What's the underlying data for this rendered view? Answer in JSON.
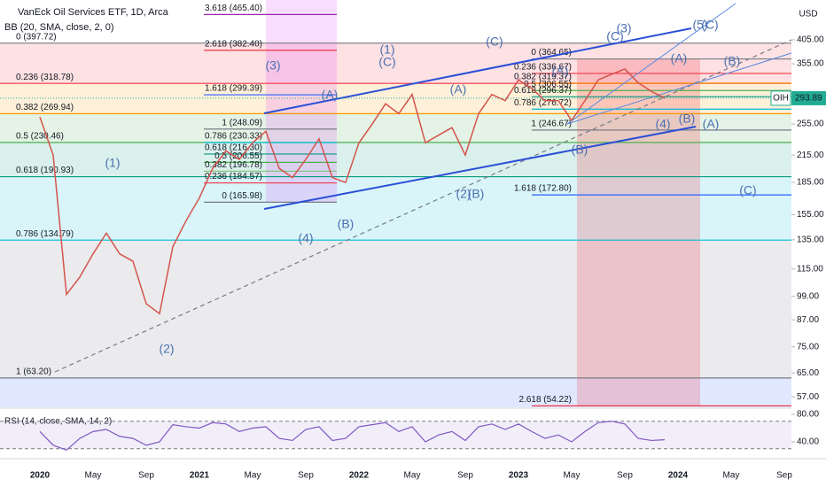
{
  "chart_data": [
    {
      "type": "line",
      "title": "VanEck Oil Services ETF, 1D, Arca",
      "subtitle": "BB (20, SMA, close, 2, 0)",
      "currency": "USD",
      "categories": [
        "2020",
        null,
        null,
        null,
        "May",
        null,
        null,
        null,
        "Sep",
        null,
        null,
        null,
        "2021",
        null,
        null,
        null,
        "May",
        null,
        null,
        null,
        "Sep",
        null,
        null,
        null,
        "2022",
        null,
        null,
        null,
        "May",
        null,
        null,
        null,
        "Sep",
        null,
        null,
        null,
        "2023",
        null,
        null,
        null,
        "May",
        null,
        null,
        null,
        "Sep",
        null,
        null,
        null,
        "2024",
        null,
        null,
        null,
        "May",
        null,
        null,
        null,
        "Sep"
      ],
      "values": [
        265,
        215,
        100,
        110,
        125,
        140,
        125,
        120,
        95,
        90,
        130,
        150,
        170,
        200,
        220,
        210,
        230,
        245,
        200,
        190,
        210,
        235,
        190,
        185,
        230,
        255,
        285,
        270,
        300,
        230,
        240,
        250,
        215,
        270,
        300,
        290,
        325,
        310,
        290,
        290,
        260,
        290,
        325,
        335,
        345,
        320,
        305,
        294,
        null,
        null,
        null,
        null,
        null,
        null,
        null,
        null,
        null
      ],
      "color": "#d4534b",
      "log": true,
      "ylim": [
        53.8,
        504
      ],
      "yticks": [
        {
          "value": 405,
          "label": "405.00"
        },
        {
          "value": 355,
          "label": "355.00"
        },
        {
          "value": 255,
          "label": "255.00"
        },
        {
          "value": 215,
          "label": "215.00"
        },
        {
          "value": 185,
          "label": "185.00"
        },
        {
          "value": 155,
          "label": "155.00"
        },
        {
          "value": 135,
          "label": "135.00"
        },
        {
          "value": 115,
          "label": "115.00"
        },
        {
          "value": 99,
          "label": "99.00"
        },
        {
          "value": 87,
          "label": "87.00"
        },
        {
          "value": 75,
          "label": "75.00"
        },
        {
          "value": 65,
          "label": "65.00"
        },
        {
          "value": 57,
          "label": "57.00"
        }
      ],
      "last_price_label": "OIH",
      "last_price": 293.89,
      "fib_groups": [
        [
          {
            "label": "0 (397.72)",
            "value": 397.72,
            "color": "#787b86"
          },
          {
            "label": "0.236 (318.78)",
            "value": 318.78,
            "color": "#f23645"
          },
          {
            "label": "0.382 (269.94)",
            "value": 269.94,
            "color": "#ff9800"
          },
          {
            "label": "0.5 (230.46)",
            "value": 230.46,
            "color": "#4caf50"
          },
          {
            "label": "0.618 (190.93)",
            "value": 190.93,
            "color": "#089981"
          },
          {
            "label": "0.786 (134.79)",
            "value": 134.79,
            "color": "#00bcd4"
          },
          {
            "label": "1 (63.20)",
            "value": 63.2,
            "color": "#787b86"
          }
        ],
        [
          {
            "label": "3.618 (465.40)",
            "value": 465.4,
            "color": "#9c27b0"
          },
          {
            "label": "2.618 (382.40)",
            "value": 382.4,
            "color": "#f23645"
          },
          {
            "label": "1.618 (299.39)",
            "value": 299.39,
            "color": "#2962ff"
          },
          {
            "label": "1 (248.09)",
            "value": 248.09,
            "color": "#787b86"
          },
          {
            "label": "0.786 (230.33)",
            "value": 230.33,
            "color": "#00bcd4"
          },
          {
            "label": "0.618 (216.30)",
            "value": 216.3,
            "color": "#089981"
          },
          {
            "label": "0.5 (206.55)",
            "value": 206.55,
            "color": "#4caf50"
          },
          {
            "label": "0.382 (196.78)",
            "value": 196.78,
            "color": "#81c784"
          },
          {
            "label": "0.236 (184.57)",
            "value": 184.57,
            "color": "#f23645"
          },
          {
            "label": "0 (165.98)",
            "value": 165.98,
            "color": "#787b86"
          }
        ],
        [
          {
            "label": "0 (364.65)",
            "value": 364.65,
            "color": "#787b86"
          },
          {
            "label": "0.236 (336.67)",
            "value": 336.67,
            "color": "#f23645"
          },
          {
            "label": "0.382 (319.37)",
            "value": 319.37,
            "color": "#ff9800"
          },
          {
            "label": "0.5 (306.55)",
            "value": 306.55,
            "color": "#4caf50"
          },
          {
            "label": "0.618 (296.37)",
            "value": 296.37,
            "color": "#089981"
          },
          {
            "label": "0.786 (276.72)",
            "value": 276.72,
            "color": "#00bcd4"
          },
          {
            "label": "1 (246.67)",
            "value": 246.67,
            "color": "#787b86"
          },
          {
            "label": "1.618 (172.80)",
            "value": 172.8,
            "color": "#2962ff"
          },
          {
            "label": "2.618 (54.22)",
            "value": 54.22,
            "color": "#f23645"
          }
        ]
      ],
      "wave_labels": [
        "(1)",
        "(2)",
        "(3)",
        "(4)",
        "(A)",
        "(B)",
        "(1)",
        "(C)",
        "(A)",
        "(2)",
        "(B)",
        "(C)",
        "(A)",
        "(B)",
        "(C)",
        "(3)",
        "(A)",
        "(4)",
        "(B)",
        "(A)",
        "(5)",
        "(C)",
        "(B)",
        "(C)"
      ]
    },
    {
      "type": "line",
      "title": "RSI (14, close, SMA, 14, 2)",
      "values": [
        55,
        35,
        28,
        45,
        55,
        58,
        48,
        45,
        35,
        40,
        65,
        62,
        60,
        68,
        66,
        55,
        60,
        62,
        45,
        42,
        58,
        62,
        42,
        45,
        62,
        65,
        68,
        55,
        62,
        40,
        50,
        55,
        42,
        62,
        66,
        58,
        66,
        55,
        45,
        50,
        40,
        55,
        68,
        70,
        66,
        45,
        42,
        43,
        null,
        null,
        null,
        null,
        null,
        null,
        null,
        null,
        null
      ],
      "color": "#7e57c2",
      "ylim": [
        23.2,
        87.7
      ],
      "yticks": [
        {
          "value": 80,
          "label": "80.00"
        },
        {
          "value": 40,
          "label": "40.00"
        }
      ]
    }
  ]
}
